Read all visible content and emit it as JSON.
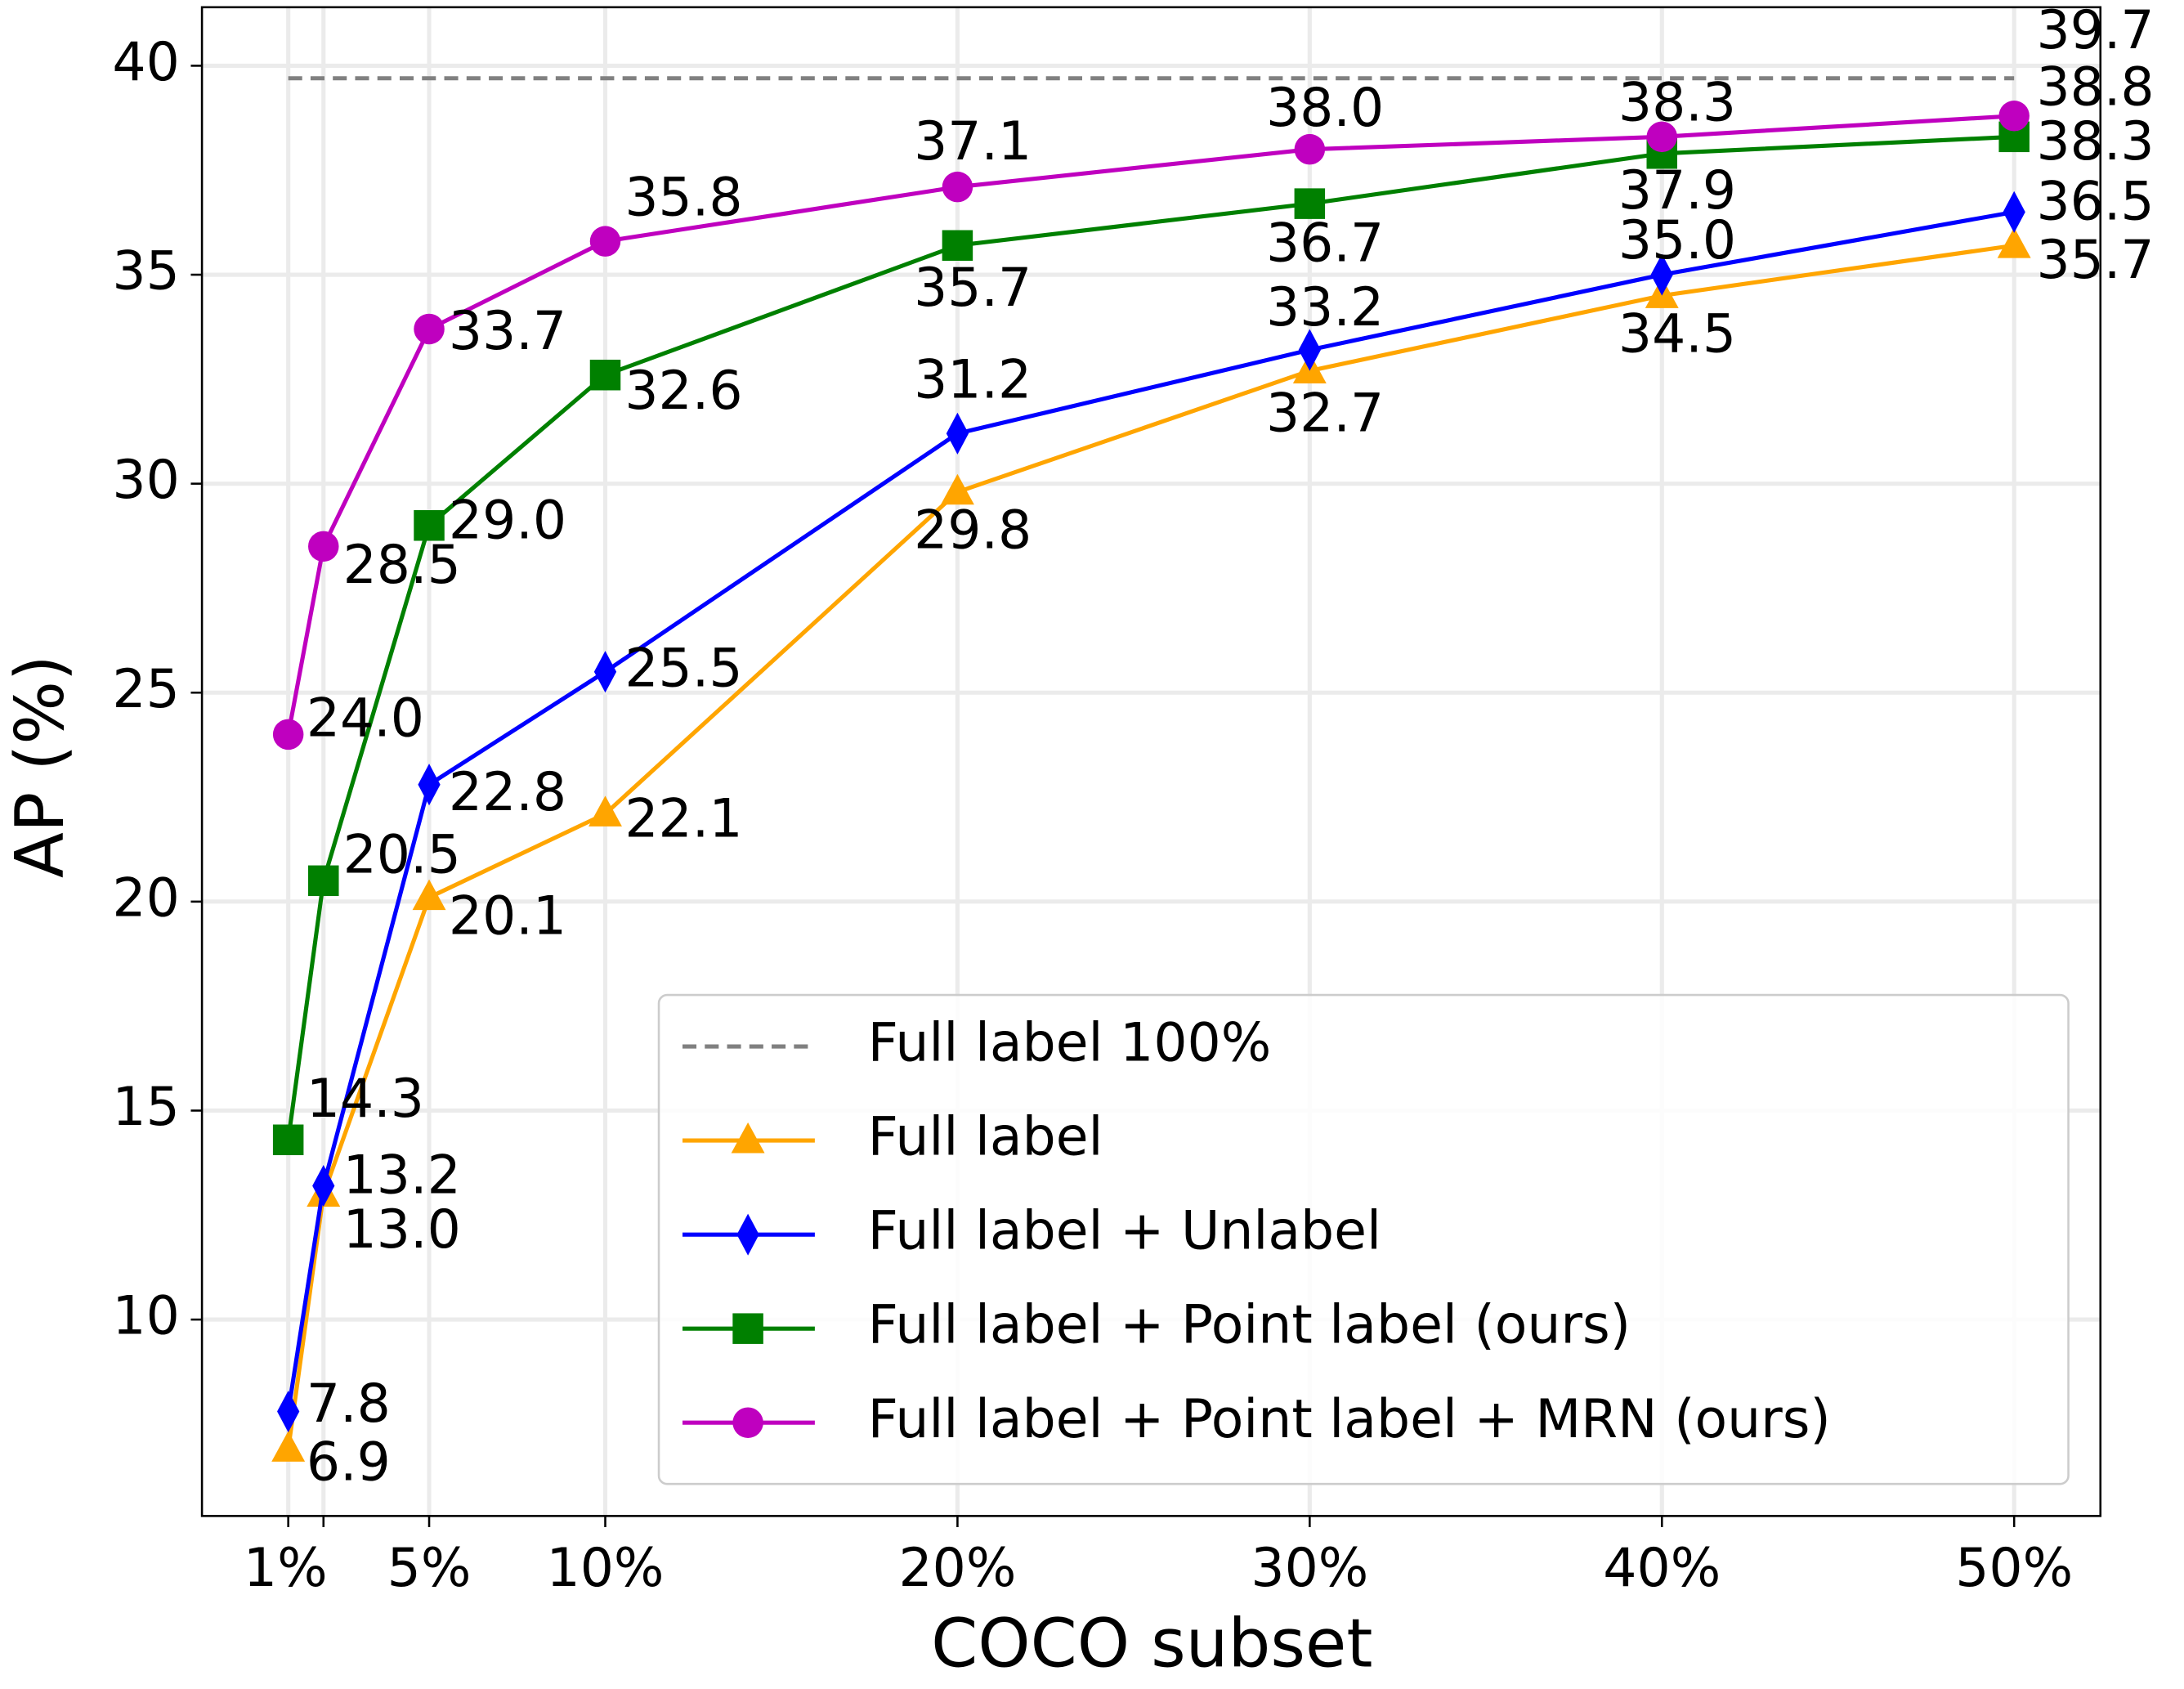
{
  "chart_data": {
    "type": "line",
    "x_label": "COCO subset",
    "y_label": "AP (%)",
    "x": [
      1,
      2,
      5,
      10,
      20,
      30,
      40,
      50
    ],
    "xlim": [
      -1.45,
      52.45
    ],
    "ylim": [
      5.3,
      41.4
    ],
    "xticks": [
      {
        "value": 1,
        "label": "1%"
      },
      {
        "value": 2,
        "label": null
      },
      {
        "value": 5,
        "label": "5%"
      },
      {
        "value": 10,
        "label": "10%"
      },
      {
        "value": 20,
        "label": "20%"
      },
      {
        "value": 30,
        "label": "30%"
      },
      {
        "value": 40,
        "label": "40%"
      },
      {
        "value": 50,
        "label": "50%"
      }
    ],
    "yticks": [
      10,
      15,
      20,
      25,
      30,
      35,
      40
    ],
    "grid": true,
    "legend": "lower right",
    "reference": {
      "name": "Full label 100%",
      "value": 39.7,
      "value_label": "39.7",
      "color": "#808080"
    },
    "series": [
      {
        "name": "Full label",
        "color": "#ffa500",
        "marker": "triangle",
        "values": [
          6.9,
          13.0,
          20.1,
          22.1,
          29.8,
          32.7,
          34.5,
          35.7
        ],
        "value_labels": [
          "6.9",
          "13.0",
          "20.1",
          "22.1",
          "29.8",
          "32.7",
          "34.5",
          "35.7"
        ]
      },
      {
        "name": "Full label + Unlabel",
        "color": "#0000ff",
        "marker": "diamond",
        "values": [
          7.8,
          13.2,
          22.8,
          25.5,
          31.2,
          33.2,
          35.0,
          36.5
        ],
        "value_labels": [
          "7.8",
          "13.2",
          "22.8",
          "25.5",
          "31.2",
          "33.2",
          "35.0",
          "36.5"
        ]
      },
      {
        "name": "Full label + Point label (ours)",
        "color": "#008000",
        "marker": "square",
        "values": [
          14.3,
          20.5,
          29.0,
          32.6,
          35.7,
          36.7,
          37.9,
          38.3
        ],
        "value_labels": [
          "14.3",
          "20.5",
          "29.0",
          "32.6",
          "35.7",
          "36.7",
          "37.9",
          "38.3"
        ]
      },
      {
        "name": "Full label + Point label + MRN (ours)",
        "color": "#bf00bf",
        "marker": "circle",
        "values": [
          24.0,
          28.5,
          33.7,
          35.8,
          37.1,
          38.0,
          38.3,
          38.8
        ],
        "value_labels": [
          "24.0",
          "28.5",
          "33.7",
          "35.8",
          "37.1",
          "38.0",
          "38.3",
          "38.8"
        ]
      }
    ]
  }
}
